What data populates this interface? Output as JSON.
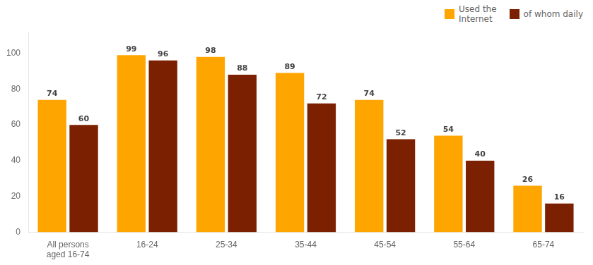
{
  "chart_data": {
    "type": "bar",
    "categories": [
      "All persons\naged 16-74",
      "16-24",
      "25-34",
      "35-44",
      "45-54",
      "55-64",
      "65-74"
    ],
    "series": [
      {
        "name": "Used the\nInternet",
        "color": "#FFA500",
        "values": [
          74,
          99,
          98,
          89,
          74,
          54,
          26
        ]
      },
      {
        "name": "of whom daily",
        "color": "#7B2000",
        "values": [
          60,
          96,
          88,
          72,
          52,
          40,
          16
        ]
      }
    ],
    "ylim": [
      0,
      112
    ],
    "yticks": [
      0,
      20,
      40,
      60,
      80,
      100
    ],
    "grid": false,
    "legend": "upper right",
    "data_labels": true
  }
}
